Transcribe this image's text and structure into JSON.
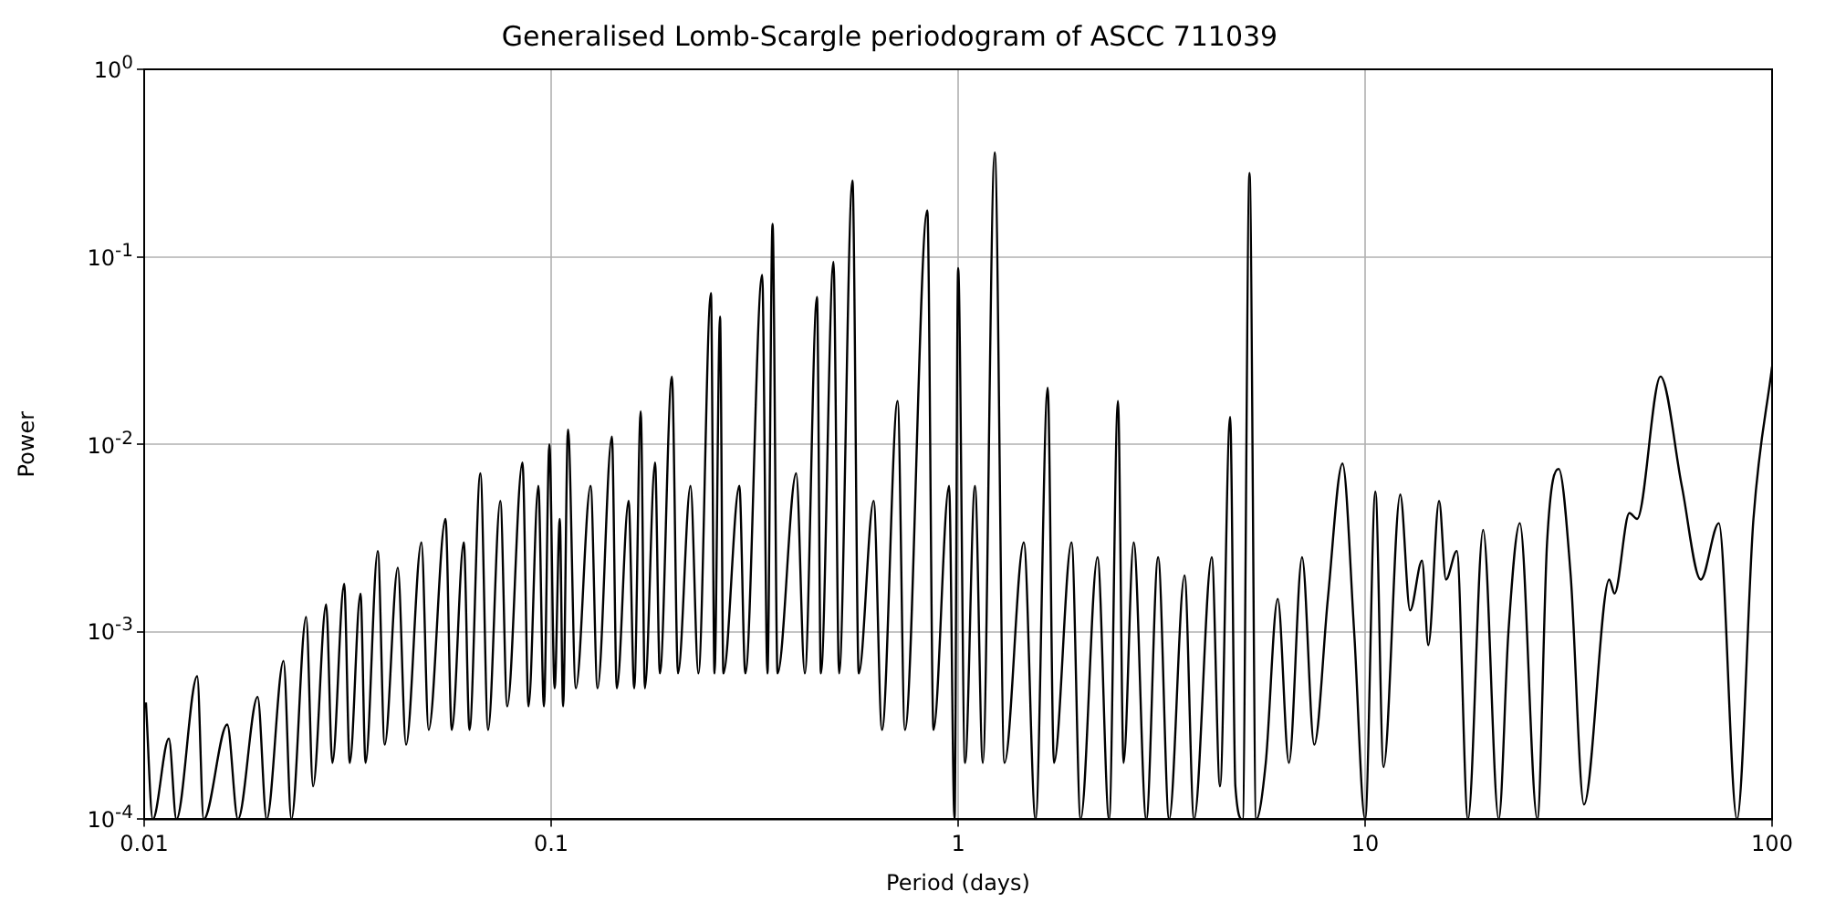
{
  "chart_data": {
    "type": "line",
    "title": "Generalised Lomb-Scargle periodogram of ASCC 711039",
    "xlabel": "Period (days)",
    "ylabel": "Power",
    "log": "xy",
    "grid": true,
    "marker": "none",
    "line_style": "solid",
    "xlim": [
      0.01,
      100
    ],
    "xticks": [
      0.01,
      0.1,
      1,
      10,
      100
    ],
    "ylim": [
      0.0001,
      1
    ],
    "yticks": [
      {
        "value": 0.0001,
        "label": "10$^{-4}$"
      },
      {
        "value": 0.001,
        "label": "10$^{-3}$"
      },
      {
        "value": 0.01,
        "label": "10$^{-2}$"
      },
      {
        "value": 0.1,
        "label": "10$^{-1}$"
      },
      {
        "value": 1,
        "label": "10$^{0}$"
      }
    ],
    "series": [
      {
        "color": "#000000",
        "x": [
          0.0101,
          0.0105,
          0.0115,
          0.012,
          0.0135,
          0.014,
          0.016,
          0.017,
          0.019,
          0.02,
          0.022,
          0.023,
          0.025,
          0.026,
          0.028,
          0.029,
          0.031,
          0.032,
          0.034,
          0.035,
          0.0375,
          0.039,
          0.042,
          0.044,
          0.048,
          0.05,
          0.055,
          0.057,
          0.061,
          0.063,
          0.067,
          0.07,
          0.075,
          0.078,
          0.085,
          0.088,
          0.093,
          0.096,
          0.099,
          0.102,
          0.105,
          0.107,
          0.11,
          0.115,
          0.125,
          0.13,
          0.141,
          0.145,
          0.155,
          0.16,
          0.166,
          0.17,
          0.18,
          0.185,
          0.198,
          0.205,
          0.22,
          0.23,
          0.247,
          0.252,
          0.26,
          0.265,
          0.29,
          0.3,
          0.33,
          0.34,
          0.35,
          0.36,
          0.4,
          0.42,
          0.45,
          0.46,
          0.494,
          0.51,
          0.55,
          0.57,
          0.62,
          0.65,
          0.71,
          0.74,
          0.84,
          0.87,
          0.95,
          0.98,
          1.0,
          1.04,
          1.1,
          1.15,
          1.23,
          1.3,
          1.45,
          1.55,
          1.66,
          1.72,
          1.9,
          2.0,
          2.2,
          2.35,
          2.47,
          2.55,
          2.7,
          2.9,
          3.1,
          3.3,
          3.6,
          3.8,
          4.2,
          4.4,
          4.66,
          4.8,
          5.0,
          5.2,
          5.4,
          5.7,
          6.1,
          6.5,
          7.0,
          7.5,
          8.1,
          8.8,
          9.4,
          10,
          10.6,
          11.1,
          12.2,
          12.9,
          13.8,
          14.3,
          15.2,
          15.8,
          16.8,
          17.9,
          19.5,
          21.3,
          22.5,
          24,
          26.5,
          28,
          29.9,
          32,
          34.5,
          39.8,
          41,
          44.6,
          46.6,
          53.2,
          60,
          66.8,
          74,
          82,
          90,
          100
        ],
        "values": [
          0.00042,
          0.0001,
          0.00027,
          0.0001,
          0.00058,
          0.0001,
          0.00032,
          0.0001,
          0.00045,
          0.0001,
          0.0007,
          0.0001,
          0.0012,
          0.00015,
          0.0014,
          0.0002,
          0.0018,
          0.0002,
          0.0016,
          0.0002,
          0.0027,
          0.00025,
          0.0022,
          0.00025,
          0.003,
          0.0003,
          0.004,
          0.0003,
          0.003,
          0.0003,
          0.007,
          0.0003,
          0.005,
          0.0004,
          0.008,
          0.0004,
          0.006,
          0.0004,
          0.01,
          0.0005,
          0.004,
          0.0004,
          0.012,
          0.0005,
          0.006,
          0.0005,
          0.011,
          0.0005,
          0.005,
          0.0005,
          0.015,
          0.0005,
          0.008,
          0.0006,
          0.023,
          0.0006,
          0.006,
          0.0006,
          0.064,
          0.0006,
          0.048,
          0.0006,
          0.006,
          0.0006,
          0.08,
          0.0006,
          0.15,
          0.0006,
          0.007,
          0.0006,
          0.061,
          0.0006,
          0.094,
          0.0006,
          0.255,
          0.0006,
          0.005,
          0.0003,
          0.017,
          0.0003,
          0.177,
          0.0003,
          0.006,
          0.0001,
          0.087,
          0.0002,
          0.006,
          0.0002,
          0.36,
          0.0002,
          0.003,
          0.0001,
          0.02,
          0.0002,
          0.003,
          0.0001,
          0.0025,
          0.0001,
          0.017,
          0.0002,
          0.003,
          0.0001,
          0.0025,
          0.0001,
          0.002,
          0.0001,
          0.0025,
          0.00015,
          0.014,
          0.00015,
          0.0001,
          0.28,
          0.0001,
          0.0002,
          0.0015,
          0.0002,
          0.0025,
          0.00025,
          0.0015,
          0.0079,
          0.001,
          0.0001,
          0.0056,
          0.00019,
          0.0054,
          0.0013,
          0.0024,
          0.00085,
          0.005,
          0.0019,
          0.0027,
          0.0001,
          0.0035,
          0.0001,
          0.001,
          0.0038,
          0.0001,
          0.003,
          0.0074,
          0.002,
          0.00012,
          0.0019,
          0.0016,
          0.0043,
          0.004,
          0.023,
          0.006,
          0.0019,
          0.0038,
          0.0001,
          0.004,
          0.026
        ]
      }
    ]
  }
}
